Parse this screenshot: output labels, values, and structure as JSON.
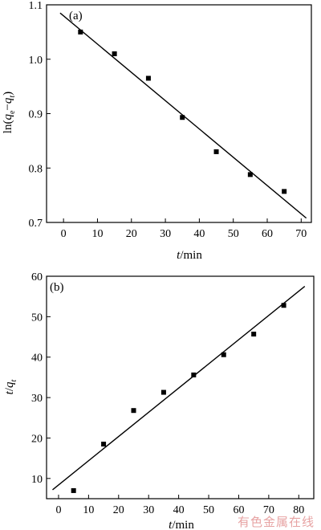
{
  "watermark": "有色金属在线",
  "chart_data": [
    {
      "type": "scatter",
      "panel_label": "(a)",
      "xlabel_italic": "t",
      "xlabel_rest": "/min",
      "ylabel_prefix": "ln(",
      "ylabel_q1": "q",
      "ylabel_sub1": "e",
      "ylabel_minus": "−",
      "ylabel_q2": "q",
      "ylabel_sub2": "t",
      "ylabel_suffix": ")",
      "xlim": [
        -5,
        73
      ],
      "ylim": [
        0.7,
        1.1
      ],
      "xticks": [
        0,
        10,
        20,
        30,
        40,
        50,
        60,
        70
      ],
      "yticks": [
        0.7,
        0.8,
        0.9,
        1.0,
        1.1
      ],
      "ytick_labels": [
        "0.7",
        "0.8",
        "0.9",
        "1.0",
        "1.1"
      ],
      "grid": false,
      "points": {
        "x": [
          5,
          15,
          25,
          35,
          45,
          55,
          65
        ],
        "y": [
          1.05,
          1.01,
          0.965,
          0.893,
          0.83,
          0.788,
          0.757
        ]
      },
      "fit_line": {
        "x": [
          -1,
          71.5
        ],
        "y": [
          1.085,
          0.708
        ]
      }
    },
    {
      "type": "scatter",
      "panel_label": "(b)",
      "xlabel_italic": "t",
      "xlabel_rest": "/min",
      "ylabel_q1": "t",
      "ylabel_slash": "/",
      "ylabel_q2": "q",
      "ylabel_sub2": "t",
      "xlim": [
        -4,
        85
      ],
      "ylim": [
        5,
        60
      ],
      "xticks": [
        0,
        10,
        20,
        30,
        40,
        50,
        60,
        70,
        80
      ],
      "yticks": [
        10,
        20,
        30,
        40,
        50,
        60
      ],
      "ytick_labels": [
        "10",
        "20",
        "30",
        "40",
        "50",
        "60"
      ],
      "grid": false,
      "points": {
        "x": [
          5,
          15,
          25,
          35,
          45,
          55,
          65,
          75
        ],
        "y": [
          7,
          18.5,
          26.8,
          31.3,
          35.6,
          40.6,
          45.7,
          52.8
        ]
      },
      "fit_line": {
        "x": [
          -2,
          82
        ],
        "y": [
          7.2,
          57.5
        ]
      }
    }
  ]
}
